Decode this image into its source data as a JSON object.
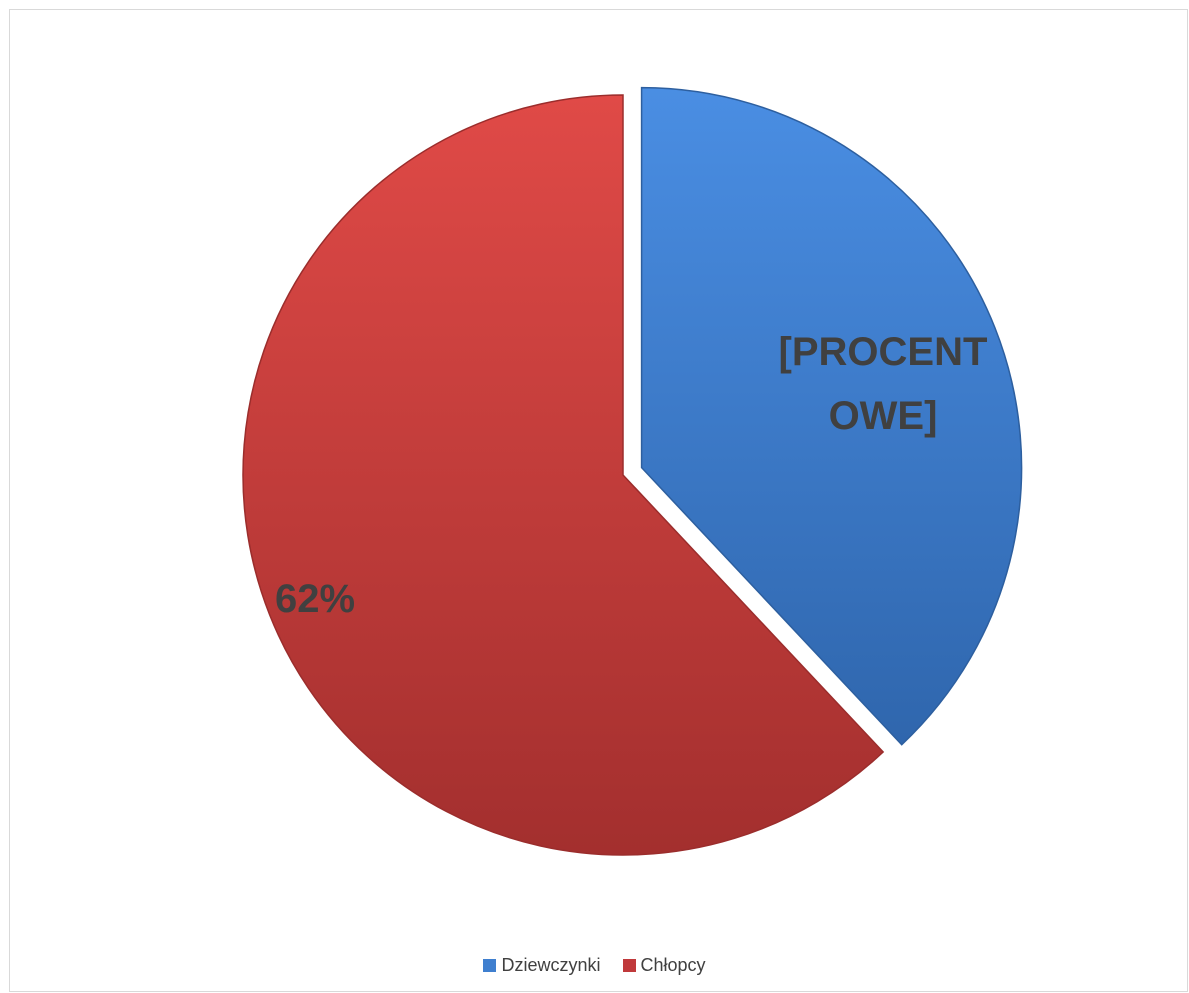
{
  "colors": {
    "slice_blue": "#3f7fcf",
    "slice_red": "#c0393b",
    "label_text": "#404040",
    "frame_border": "#d9d9d9"
  },
  "chart_data": {
    "type": "pie",
    "title": "",
    "categories": [
      "Dziewczynki",
      "Chłopcy"
    ],
    "values": [
      38,
      62
    ],
    "data_labels": [
      "[PROCENT\nOWE]",
      "62%"
    ],
    "exploded": [
      true,
      false
    ],
    "legend_position": "bottom",
    "start_angle_deg": 0
  },
  "legend": {
    "items": [
      {
        "label": "Dziewczynki",
        "color": "#3f7fcf"
      },
      {
        "label": "Chłopcy",
        "color": "#c0393b"
      }
    ]
  }
}
